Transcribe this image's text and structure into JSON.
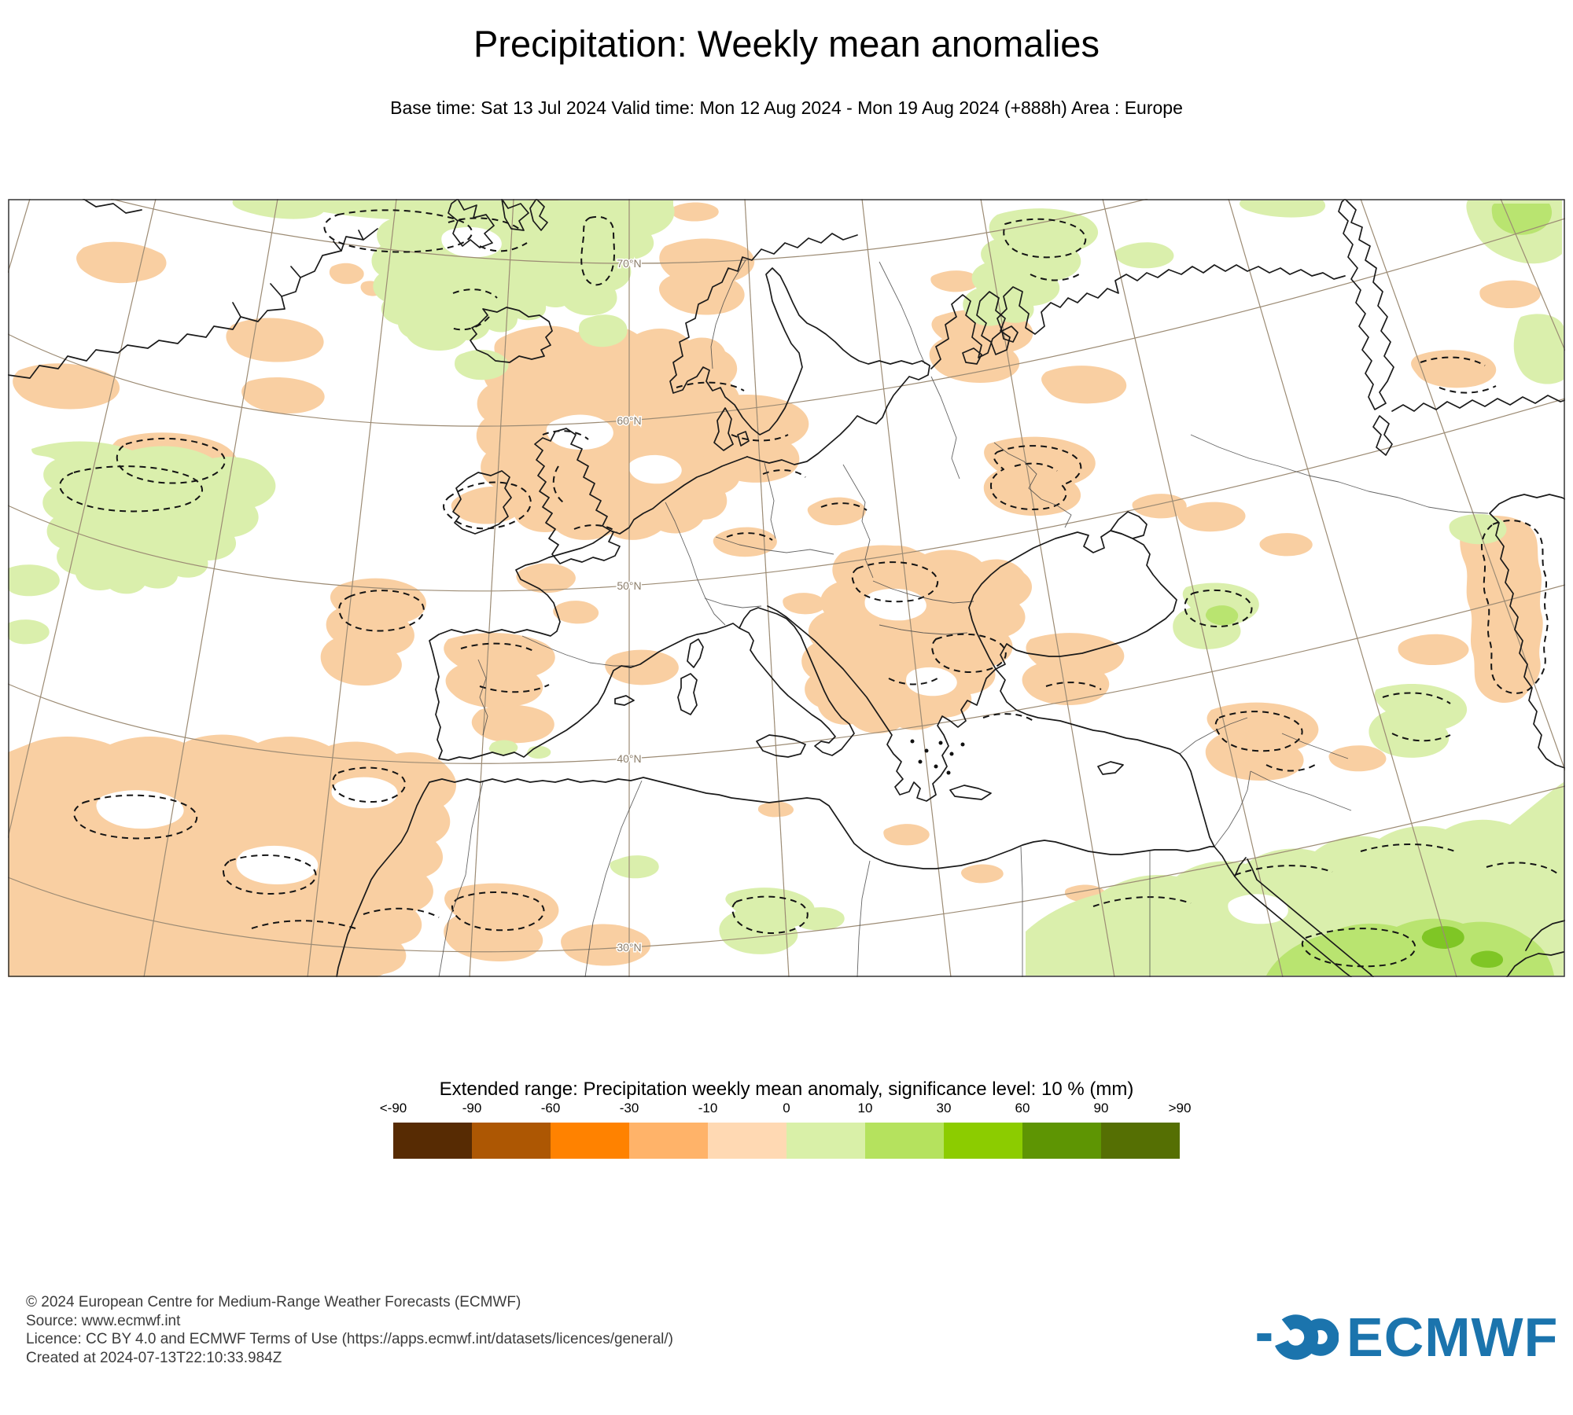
{
  "header": {
    "title": "Precipitation: Weekly mean anomalies",
    "subtitle": "Base time: Sat 13 Jul 2024 Valid time: Mon 12 Aug 2024 - Mon 19 Aug 2024 (+888h) Area : Europe"
  },
  "map": {
    "graticule_labels": [
      "70°N",
      "60°N",
      "50°N",
      "40°N",
      "30°N"
    ]
  },
  "legend": {
    "title": "Extended range: Precipitation weekly mean anomaly, significance level: 10 % (mm)",
    "tick_labels": [
      "<-90",
      "-90",
      "-60",
      "-30",
      "-10",
      "0",
      "10",
      "30",
      "60",
      "90",
      ">90"
    ],
    "colors": [
      "#572B03",
      "#AD5703",
      "#FF8200",
      "#FFB369",
      "#FFD9B3",
      "#D9F0A8",
      "#B5E25E",
      "#8CCC00",
      "#5E9503",
      "#556F03"
    ]
  },
  "footer": {
    "lines": [
      "© 2024 European Centre for Medium-Range Weather Forecasts (ECMWF)",
      "Source: www.ecmwf.int",
      "Licence: CC BY 4.0 and ECMWF Terms of Use (https://apps.ecmwf.int/datasets/licences/general/)",
      "Created at 2024-07-13T22:10:33.984Z"
    ]
  },
  "logo": {
    "text": "ECMWF",
    "color": "#1B74AD"
  }
}
